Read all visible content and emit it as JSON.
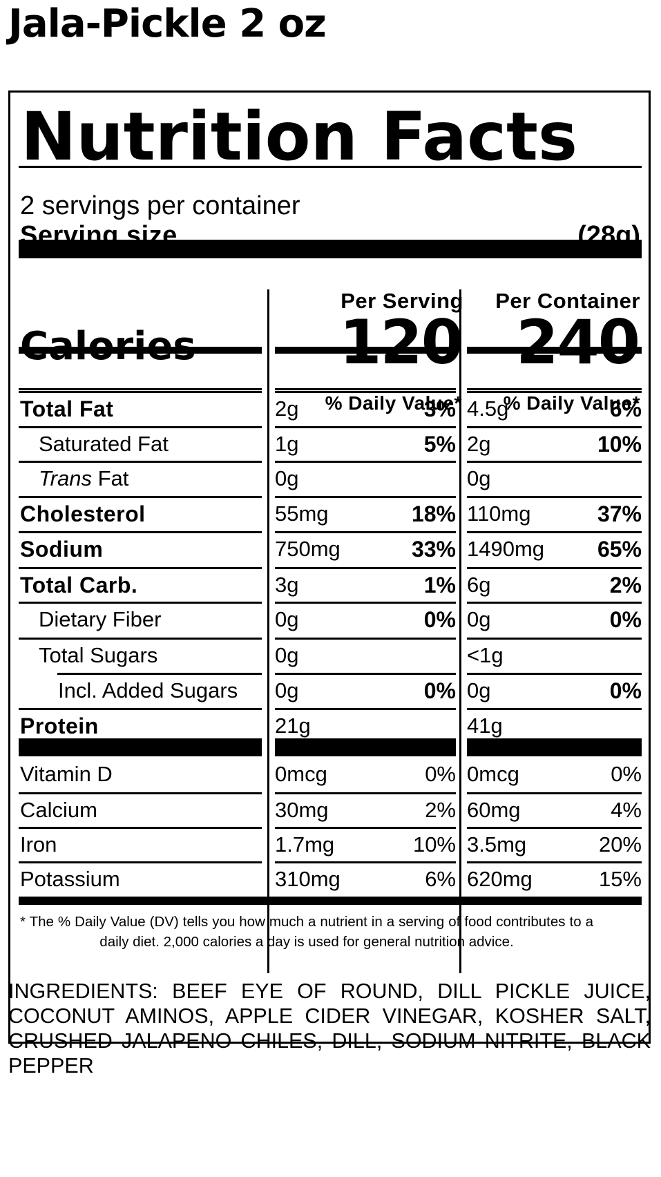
{
  "product": {
    "title": "Jala-Pickle 2 oz"
  },
  "label": {
    "heading": "Nutrition Facts",
    "servings_per_container": "2 servings per container",
    "serving_size_label": "Serving size",
    "serving_size_value": "(28g)",
    "calories_label": "Calories",
    "per_serving_header": "Per Serving",
    "per_container_header": "Per Container",
    "calories_per_serving": "120",
    "calories_per_container": "240",
    "dv_header": "% Daily Value*",
    "nutrients": [
      {
        "label": "Total Fat",
        "bold": true,
        "indent": 0,
        "serving_amount": "2g",
        "serving_dv": "3%",
        "container_amount": "4.5g",
        "container_dv": "6%"
      },
      {
        "label": "Saturated Fat",
        "bold": false,
        "indent": 1,
        "serving_amount": "1g",
        "serving_dv": "5%",
        "container_amount": "2g",
        "container_dv": "10%"
      },
      {
        "label_italic": "Trans",
        "label": " Fat",
        "bold": false,
        "indent": 1,
        "serving_amount": "0g",
        "serving_dv": "",
        "container_amount": "0g",
        "container_dv": ""
      },
      {
        "label": "Cholesterol",
        "bold": true,
        "indent": 0,
        "serving_amount": "55mg",
        "serving_dv": "18%",
        "container_amount": "110mg",
        "container_dv": "37%"
      },
      {
        "label": "Sodium",
        "bold": true,
        "indent": 0,
        "serving_amount": "750mg",
        "serving_dv": "33%",
        "container_amount": "1490mg",
        "container_dv": "65%"
      },
      {
        "label": "Total Carb.",
        "bold": true,
        "indent": 0,
        "serving_amount": "3g",
        "serving_dv": "1%",
        "container_amount": "6g",
        "container_dv": "2%"
      },
      {
        "label": "Dietary Fiber",
        "bold": false,
        "indent": 1,
        "serving_amount": "0g",
        "serving_dv": "0%",
        "container_amount": "0g",
        "container_dv": "0%"
      },
      {
        "label": "Total Sugars",
        "bold": false,
        "indent": 1,
        "serving_amount": "0g",
        "serving_dv": "",
        "container_amount": "<1g",
        "container_dv": ""
      },
      {
        "label": "Incl. Added Sugars",
        "bold": false,
        "indent": 2,
        "serving_amount": "0g",
        "serving_dv": "0%",
        "container_amount": "0g",
        "container_dv": "0%"
      },
      {
        "label": "Protein",
        "bold": true,
        "indent": 0,
        "serving_amount": "21g",
        "serving_dv": "",
        "container_amount": "41g",
        "container_dv": ""
      }
    ],
    "vitamins": [
      {
        "label": "Vitamin D",
        "serving_amount": "0mcg",
        "serving_dv": "0%",
        "container_amount": "0mcg",
        "container_dv": "0%"
      },
      {
        "label": "Calcium",
        "serving_amount": "30mg",
        "serving_dv": "2%",
        "container_amount": "60mg",
        "container_dv": "4%"
      },
      {
        "label": "Iron",
        "serving_amount": "1.7mg",
        "serving_dv": "10%",
        "container_amount": "3.5mg",
        "container_dv": "20%"
      },
      {
        "label": "Potassium",
        "serving_amount": "310mg",
        "serving_dv": "6%",
        "container_amount": "620mg",
        "container_dv": "15%"
      }
    ],
    "footnote": "* The % Daily Value (DV) tells you how much a nutrient in a serving of food contributes to a daily diet. 2,000 calories a day is used for general nutrition advice."
  },
  "ingredients": "INGREDIENTS: BEEF EYE OF ROUND, DILL PICKLE JUICE, COCONUT AMINOS, APPLE CIDER VINEGAR, KOSHER SALT, CRUSHED JALAPENO CHILES, DILL, SODIUM NITRITE, BLACK PEPPER"
}
